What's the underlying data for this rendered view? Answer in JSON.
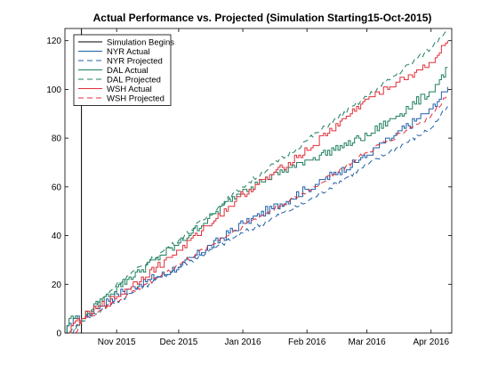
{
  "chart_data": {
    "type": "line",
    "title": "Actual Performance vs. Projected (Simulation Starting15-Oct-2015)",
    "xlabel": "",
    "ylabel": "",
    "x_range": [
      "2015-10-07",
      "2016-04-11"
    ],
    "ylim": [
      0,
      125
    ],
    "y_ticks": [
      0,
      20,
      40,
      60,
      80,
      100,
      120
    ],
    "x_ticks": [
      {
        "date": "2015-11-01",
        "label": "Nov 2015"
      },
      {
        "date": "2015-12-01",
        "label": "Dec 2015"
      },
      {
        "date": "2016-01-01",
        "label": "Jan 2016"
      },
      {
        "date": "2016-02-01",
        "label": "Feb 2016"
      },
      {
        "date": "2016-03-01",
        "label": "Mar 2016"
      },
      {
        "date": "2016-04-01",
        "label": "Apr 2016"
      }
    ],
    "grid": false,
    "legend_position": "top-left",
    "vline": {
      "name": "Simulation Begins",
      "x": "2015-10-15",
      "color": "#000000"
    },
    "series": [
      {
        "name": "NYR Actual",
        "color": "#1f5fa8",
        "dash": "solid",
        "step": true,
        "points": [
          [
            "2015-10-07",
            0
          ],
          [
            "2015-10-11",
            6
          ],
          [
            "2015-10-15",
            6
          ],
          [
            "2015-11-01",
            16
          ],
          [
            "2015-12-01",
            27
          ],
          [
            "2016-01-01",
            45
          ],
          [
            "2016-02-01",
            59
          ],
          [
            "2016-03-01",
            73
          ],
          [
            "2016-04-01",
            92
          ],
          [
            "2016-04-09",
            101
          ]
        ]
      },
      {
        "name": "NYR Projected",
        "color": "#1f5fa8",
        "dash": "dashed",
        "step": false,
        "points": [
          [
            "2015-10-10",
            0
          ],
          [
            "2015-10-15",
            5
          ],
          [
            "2015-11-01",
            13
          ],
          [
            "2015-12-01",
            27
          ],
          [
            "2016-01-01",
            41
          ],
          [
            "2016-02-01",
            54
          ],
          [
            "2016-03-01",
            69
          ],
          [
            "2016-04-01",
            84
          ],
          [
            "2016-04-09",
            93
          ]
        ]
      },
      {
        "name": "DAL Actual",
        "color": "#1f7f5f",
        "dash": "solid",
        "step": true,
        "points": [
          [
            "2015-10-07",
            0
          ],
          [
            "2015-10-09",
            6
          ],
          [
            "2015-10-15",
            6
          ],
          [
            "2015-11-01",
            19
          ],
          [
            "2015-12-01",
            37
          ],
          [
            "2016-01-01",
            59
          ],
          [
            "2016-02-01",
            71
          ],
          [
            "2016-03-01",
            81
          ],
          [
            "2016-04-01",
            99
          ],
          [
            "2016-04-09",
            109
          ]
        ]
      },
      {
        "name": "DAL Projected",
        "color": "#1f7f5f",
        "dash": "dashed",
        "step": false,
        "points": [
          [
            "2015-10-09",
            0
          ],
          [
            "2015-10-15",
            5
          ],
          [
            "2015-11-01",
            20
          ],
          [
            "2015-12-01",
            38
          ],
          [
            "2016-01-01",
            60
          ],
          [
            "2016-02-01",
            79
          ],
          [
            "2016-03-01",
            97
          ],
          [
            "2016-04-01",
            117
          ],
          [
            "2016-04-09",
            125
          ]
        ]
      },
      {
        "name": "WSH Actual",
        "color": "#e0303a",
        "dash": "solid",
        "step": true,
        "points": [
          [
            "2015-10-09",
            0
          ],
          [
            "2015-10-11",
            4
          ],
          [
            "2015-10-15",
            6
          ],
          [
            "2015-11-01",
            15
          ],
          [
            "2015-12-01",
            34
          ],
          [
            "2016-01-01",
            57
          ],
          [
            "2016-02-01",
            75
          ],
          [
            "2016-03-01",
            96
          ],
          [
            "2016-04-01",
            111
          ],
          [
            "2016-04-09",
            120
          ]
        ]
      },
      {
        "name": "WSH Projected",
        "color": "#e0303a",
        "dash": "dashed",
        "step": false,
        "points": [
          [
            "2015-10-12",
            0
          ],
          [
            "2015-10-15",
            5
          ],
          [
            "2015-11-01",
            13
          ],
          [
            "2015-12-01",
            28
          ],
          [
            "2016-01-01",
            44
          ],
          [
            "2016-02-01",
            58
          ],
          [
            "2016-03-01",
            74
          ],
          [
            "2016-04-01",
            89
          ],
          [
            "2016-04-09",
            98
          ]
        ]
      }
    ]
  }
}
